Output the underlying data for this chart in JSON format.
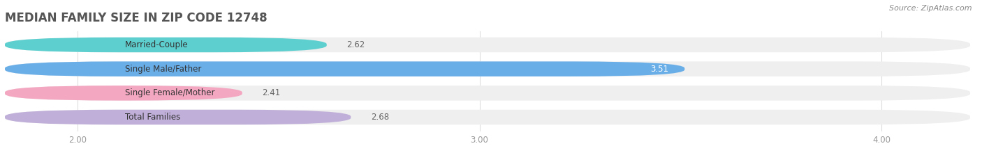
{
  "title": "MEDIAN FAMILY SIZE IN ZIP CODE 12748",
  "source": "Source: ZipAtlas.com",
  "categories": [
    "Married-Couple",
    "Single Male/Father",
    "Single Female/Mother",
    "Total Families"
  ],
  "values": [
    2.62,
    3.51,
    2.41,
    2.68
  ],
  "bar_colors": [
    "#5ecfcf",
    "#6aaee8",
    "#f4a7c0",
    "#c0afd8"
  ],
  "bar_bg_colors": [
    "#efefef",
    "#efefef",
    "#efefef",
    "#efefef"
  ],
  "label_colors": [
    "#555555",
    "#ffffff",
    "#555555",
    "#555555"
  ],
  "xlim": [
    1.82,
    4.22
  ],
  "xstart": 2.0,
  "xticks": [
    2.0,
    3.0,
    4.0
  ],
  "xtick_labels": [
    "2.00",
    "3.00",
    "4.00"
  ],
  "background_color": "#ffffff",
  "bar_height": 0.62,
  "bar_gap": 0.18,
  "title_fontsize": 12,
  "label_fontsize": 8.5,
  "value_fontsize": 8.5,
  "source_fontsize": 8.0
}
